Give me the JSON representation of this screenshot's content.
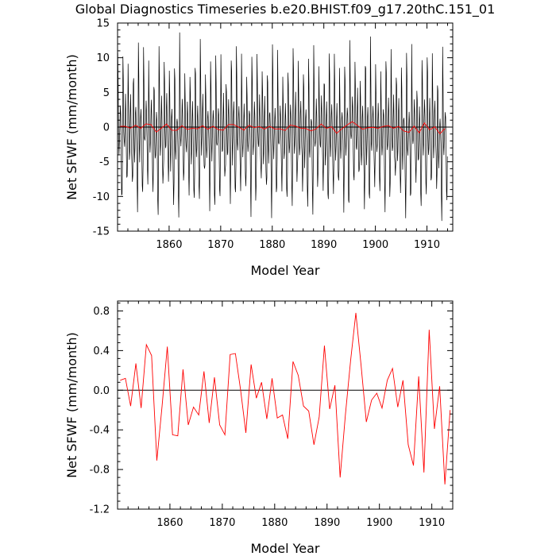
{
  "figure": {
    "title": "Global Diagnostics Timeseries b.e20.BHIST.f09_g17.20thC.151_01"
  },
  "chart_data": [
    {
      "type": "line",
      "xlabel": "Model Year",
      "ylabel": "Net SFWF (mm/month)",
      "xlim": [
        1850,
        1915
      ],
      "ylim": [
        -15,
        15
      ],
      "xticks": [
        1860,
        1870,
        1880,
        1890,
        1900,
        1910
      ],
      "yticks": [
        -15,
        -10,
        -5,
        0,
        5,
        10,
        15
      ],
      "reference_line": 0,
      "grid": false,
      "legend": "none",
      "series": [
        {
          "color": "#000000",
          "sampling": "monthly",
          "x_start": 1850.04,
          "seasonal_cycle_mean_mm_month": [
            9.5,
            6.0,
            -1.5,
            -4.0,
            -2.5,
            1.0,
            3.5,
            1.0,
            -3.0,
            -7.5,
            -9.5,
            -5.0
          ],
          "yearly_annual_mean": [
            0.1,
            0.12,
            -0.16,
            0.27,
            -0.18,
            0.46,
            0.35,
            -0.71,
            -0.16,
            0.44,
            -0.45,
            -0.46,
            0.21,
            -0.35,
            -0.17,
            -0.25,
            0.19,
            -0.33,
            0.13,
            -0.35,
            -0.45,
            0.36,
            0.37,
            0.0,
            -0.43,
            0.26,
            -0.08,
            0.08,
            -0.29,
            0.12,
            -0.28,
            -0.25,
            -0.49,
            0.29,
            0.15,
            -0.16,
            -0.21,
            -0.55,
            -0.27,
            0.45,
            -0.19,
            0.05,
            -0.88,
            -0.25,
            0.3,
            0.78,
            0.25,
            -0.32,
            -0.1,
            -0.03,
            -0.18,
            0.1,
            0.22,
            -0.17,
            0.1,
            -0.55,
            -0.76,
            0.14,
            -0.83,
            0.61,
            -0.39,
            0.04,
            -0.95,
            -0.2
          ]
        },
        {
          "color": "#ff0000",
          "sampling": "annual",
          "x_start": 1850.5,
          "values": [
            0.1,
            0.12,
            -0.16,
            0.27,
            -0.18,
            0.46,
            0.35,
            -0.71,
            -0.16,
            0.44,
            -0.45,
            -0.46,
            0.21,
            -0.35,
            -0.17,
            -0.25,
            0.19,
            -0.33,
            0.13,
            -0.35,
            -0.45,
            0.36,
            0.37,
            0.0,
            -0.43,
            0.26,
            -0.08,
            0.08,
            -0.29,
            0.12,
            -0.28,
            -0.25,
            -0.49,
            0.29,
            0.15,
            -0.16,
            -0.21,
            -0.55,
            -0.27,
            0.45,
            -0.19,
            0.05,
            -0.88,
            -0.25,
            0.3,
            0.78,
            0.25,
            -0.32,
            -0.1,
            -0.03,
            -0.18,
            0.1,
            0.22,
            -0.17,
            0.1,
            -0.55,
            -0.76,
            0.14,
            -0.83,
            0.61,
            -0.39,
            0.04,
            -0.95,
            -0.2
          ]
        }
      ]
    },
    {
      "type": "line",
      "xlabel": "Model Year",
      "ylabel": "Net SFWF (mm/month)",
      "xlim": [
        1850,
        1914
      ],
      "ylim": [
        -1.2,
        0.9
      ],
      "xticks": [
        1860,
        1870,
        1880,
        1890,
        1900,
        1910
      ],
      "yticks": [
        -1.2,
        -0.8,
        -0.4,
        0.0,
        0.4,
        0.8
      ],
      "ytick_labels": [
        "-1.2",
        "-0.8",
        "-0.4",
        "0.0",
        "0.4",
        "0.8"
      ],
      "reference_line": 0,
      "grid": false,
      "legend": "none",
      "series": [
        {
          "color": "#ff0000",
          "sampling": "annual",
          "x_start": 1850.5,
          "values": [
            0.1,
            0.12,
            -0.16,
            0.27,
            -0.18,
            0.46,
            0.35,
            -0.71,
            -0.16,
            0.44,
            -0.45,
            -0.46,
            0.21,
            -0.35,
            -0.17,
            -0.25,
            0.19,
            -0.33,
            0.13,
            -0.35,
            -0.45,
            0.36,
            0.37,
            0.0,
            -0.43,
            0.26,
            -0.08,
            0.08,
            -0.29,
            0.12,
            -0.28,
            -0.25,
            -0.49,
            0.29,
            0.15,
            -0.16,
            -0.21,
            -0.55,
            -0.27,
            0.45,
            -0.19,
            0.05,
            -0.88,
            -0.25,
            0.3,
            0.78,
            0.25,
            -0.32,
            -0.1,
            -0.03,
            -0.18,
            0.1,
            0.22,
            -0.17,
            0.1,
            -0.55,
            -0.76,
            0.14,
            -0.83,
            0.61,
            -0.39,
            0.04,
            -0.95,
            -0.2
          ]
        }
      ]
    }
  ]
}
